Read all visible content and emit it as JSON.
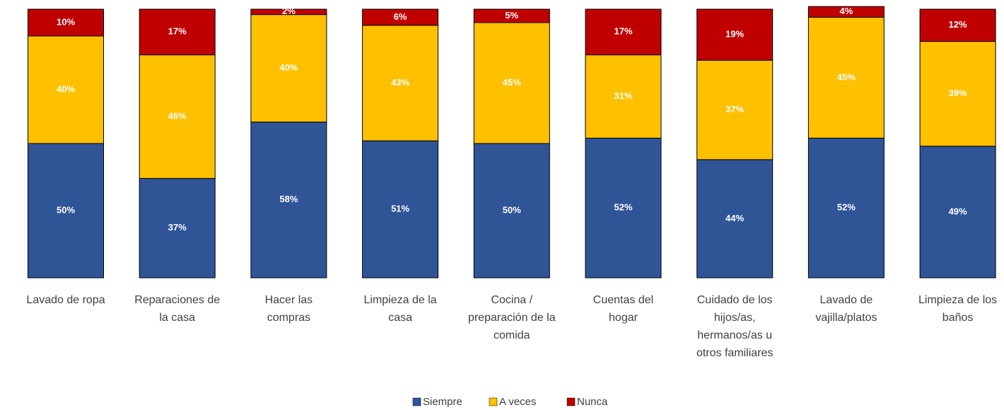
{
  "chart_data": {
    "type": "stacked_bar",
    "categories": [
      "Lavado de ropa",
      "Reparaciones de la casa",
      "Hacer las compras",
      "Limpieza de la casa",
      "Cocina / preparación de la comida",
      "Cuentas del hogar",
      "Cuidado de los hijos/as, hermanos/as u otros familiares",
      "Lavado de vajilla/platos",
      "Limpieza de los baños"
    ],
    "series": [
      {
        "name": "Siempre",
        "color": "#2f5597",
        "values": [
          50,
          37,
          58,
          51,
          50,
          52,
          44,
          52,
          49
        ],
        "value_labels": [
          "50%",
          "37%",
          "58%",
          "51%",
          "50%",
          "52%",
          "44%",
          "52%",
          "49%"
        ]
      },
      {
        "name": "A veces",
        "color": "#ffc000",
        "values": [
          40,
          46,
          40,
          43,
          45,
          31,
          37,
          45,
          39
        ],
        "value_labels": [
          "40%",
          "46%",
          "40%",
          "43%",
          "45%",
          "31%",
          "37%",
          "45%",
          "39%"
        ]
      },
      {
        "name": "Nunca",
        "color": "#c00000",
        "values": [
          10,
          17,
          2,
          6,
          5,
          17,
          19,
          4,
          12
        ],
        "value_labels": [
          "10%",
          "17%",
          "2%",
          "6%",
          "5%",
          "17%",
          "19%",
          "4%",
          "12%"
        ]
      }
    ],
    "ylim": [
      0,
      100
    ],
    "legend": "bottom"
  }
}
